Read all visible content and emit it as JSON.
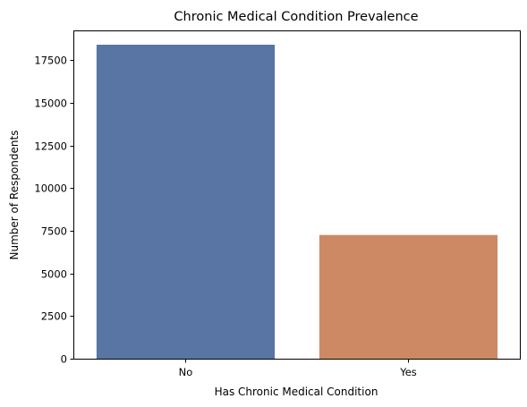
{
  "chart_data": {
    "type": "bar",
    "title": "Chronic Medical Condition Prevalence",
    "xlabel": "Has Chronic Medical Condition",
    "ylabel": "Number of Respondents",
    "categories": [
      "No",
      "Yes"
    ],
    "values": [
      18400,
      7250
    ],
    "colors": [
      "#5875a4",
      "#cc8963"
    ],
    "ylim": [
      0,
      18400
    ],
    "yticks": [
      0,
      2500,
      5000,
      7500,
      10000,
      12500,
      15000,
      17500
    ],
    "grid": false,
    "legend": "none"
  }
}
